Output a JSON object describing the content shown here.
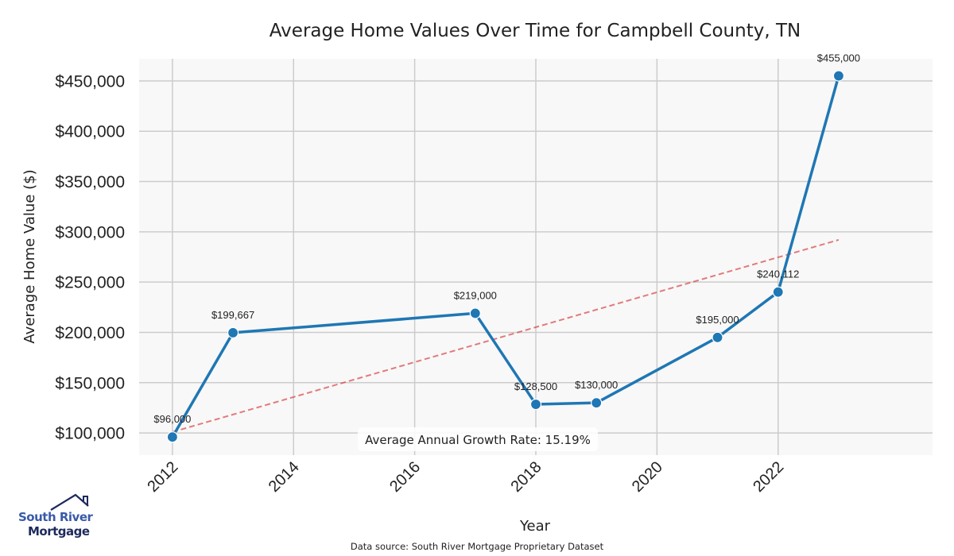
{
  "chart_data": {
    "type": "line",
    "title": "Average Home Values Over Time for Campbell County, TN",
    "xlabel": "Year",
    "ylabel": "Average Home Value ($)",
    "x": [
      2012,
      2013,
      2017,
      2018,
      2019,
      2021,
      2022,
      2023
    ],
    "series": [
      {
        "name": "Average Home Value",
        "color": "#1f77b4",
        "values": [
          96000,
          199667,
          219000,
          128500,
          130000,
          195000,
          240112,
          455000
        ],
        "labels": [
          "$96,000",
          "$199,667",
          "$219,000",
          "$128,500",
          "$130,000",
          "$195,000",
          "$240,112",
          "$455,000"
        ]
      },
      {
        "name": "Trend",
        "color": "#d62728",
        "style": "dashed",
        "x": [
          2012,
          2023
        ],
        "values": [
          101000,
          292000
        ]
      }
    ],
    "xticks": [
      2012,
      2014,
      2016,
      2018,
      2020,
      2022
    ],
    "xtick_labels": [
      "2012",
      "2014",
      "2016",
      "2018",
      "2020",
      "2022"
    ],
    "yticks": [
      100000,
      150000,
      200000,
      250000,
      300000,
      350000,
      400000,
      450000
    ],
    "ytick_labels": [
      "$100,000",
      "$150,000",
      "$200,000",
      "$250,000",
      "$300,000",
      "$350,000",
      "$400,000",
      "$450,000"
    ],
    "xlim": [
      2011.45,
      2024.55
    ],
    "ylim": [
      78000,
      472000
    ],
    "grid": true,
    "annotation": "Average Annual Growth Rate: 15.19%",
    "source": "Data source: South River Mortgage Proprietary Dataset",
    "colors": {
      "plot_background": "#f8f8f8",
      "grid": "#cccccc",
      "line": "#1f77b4",
      "trend": "#d62728"
    }
  },
  "logo": {
    "line1": "South River",
    "line2": "Mortgage"
  }
}
